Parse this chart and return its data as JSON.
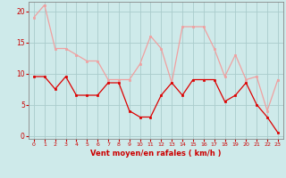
{
  "x": [
    0,
    1,
    2,
    3,
    4,
    5,
    6,
    7,
    8,
    9,
    10,
    11,
    12,
    13,
    14,
    15,
    16,
    17,
    18,
    19,
    20,
    21,
    22,
    23
  ],
  "rafales": [
    19,
    21,
    14,
    14,
    13,
    12,
    12,
    9,
    9,
    9,
    11.5,
    16,
    14,
    8.5,
    17.5,
    17.5,
    17.5,
    14,
    9.5,
    13,
    9,
    9.5,
    4,
    9
  ],
  "moyen": [
    9.5,
    9.5,
    7.5,
    9.5,
    6.5,
    6.5,
    6.5,
    8.5,
    8.5,
    4,
    3,
    3,
    6.5,
    8.5,
    6.5,
    9,
    9,
    9,
    5.5,
    6.5,
    8.5,
    5,
    3,
    0.5
  ],
  "bg_color": "#ceeaea",
  "grid_color": "#aacccc",
  "line_color_rafales": "#f0a0a0",
  "line_color_moyen": "#dd0000",
  "xlabel": "Vent moyen/en rafales ( km/h )",
  "ylim": [
    -0.5,
    21.5
  ],
  "yticks": [
    0,
    5,
    10,
    15,
    20
  ],
  "xticks": [
    0,
    1,
    2,
    3,
    4,
    5,
    6,
    7,
    8,
    9,
    10,
    11,
    12,
    13,
    14,
    15,
    16,
    17,
    18,
    19,
    20,
    21,
    22,
    23
  ]
}
